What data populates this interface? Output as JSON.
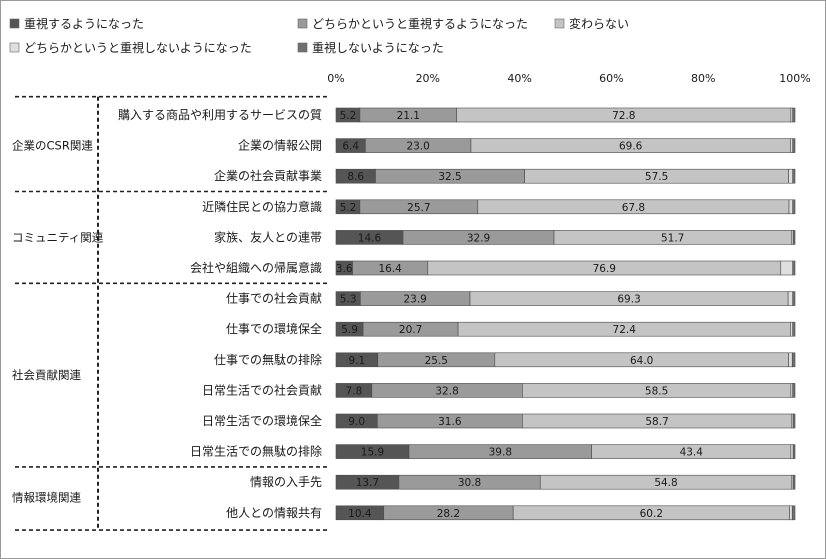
{
  "chart_data": {
    "type": "bar",
    "orientation": "horizontal",
    "stacked": true,
    "title": "",
    "xlim": [
      0,
      100
    ],
    "x_ticks": [
      "0%",
      "20%",
      "40%",
      "60%",
      "80%",
      "100%"
    ],
    "legend": {
      "placement": "top",
      "entries": [
        {
          "name": "重視するようになった",
          "color": "#555555"
        },
        {
          "name": "どちらかというと重視するようになった",
          "color": "#9a9a9a"
        },
        {
          "name": "変わらない",
          "color": "#c4c4c4"
        },
        {
          "name": "どちらかというと重視しないようになった",
          "color": "#dedede"
        },
        {
          "name": "重視しないようになった",
          "color": "#707070"
        }
      ]
    },
    "groups": [
      {
        "name": "企業のCSR関連",
        "rows": [
          0,
          2
        ]
      },
      {
        "name": "コミュニティ関連",
        "rows": [
          3,
          5
        ]
      },
      {
        "name": "社会貢献関連",
        "rows": [
          6,
          11
        ]
      },
      {
        "name": "情報環境関連",
        "rows": [
          12,
          13
        ]
      }
    ],
    "categories": [
      "購入する商品や利用するサービスの質",
      "企業の情報公開",
      "企業の社会貢献事業",
      "近隣住民との協力意識",
      "家族、友人との連帯",
      "会社や組織への帰属意識",
      "仕事での社会貢献",
      "仕事での環境保全",
      "仕事での無駄の排除",
      "日常生活での社会貢献",
      "日常生活での環境保全",
      "日常生活での無駄の排除",
      "情報の入手先",
      "他人との情報共有"
    ],
    "series": [
      {
        "name": "重視するようになった",
        "color": "#555555",
        "values": [
          5.2,
          6.4,
          8.6,
          5.2,
          14.6,
          3.6,
          5.3,
          5.9,
          9.1,
          7.8,
          9.0,
          15.9,
          13.7,
          10.4
        ]
      },
      {
        "name": "どちらかというと重視するようになった",
        "color": "#9a9a9a",
        "values": [
          21.1,
          23.0,
          32.5,
          25.7,
          32.9,
          16.4,
          23.9,
          20.7,
          25.5,
          32.8,
          31.6,
          39.8,
          30.8,
          28.2
        ]
      },
      {
        "name": "変わらない",
        "color": "#c4c4c4",
        "values": [
          72.8,
          69.6,
          57.5,
          67.8,
          51.7,
          76.9,
          69.3,
          72.4,
          64.0,
          58.5,
          58.7,
          43.4,
          54.8,
          60.2
        ]
      },
      {
        "name": "どちらかというと重視しないようになった",
        "color": "#dedede",
        "values": [
          0.4,
          0.5,
          0.9,
          0.8,
          0.4,
          2.6,
          1.0,
          0.5,
          0.8,
          0.4,
          0.3,
          0.5,
          0.3,
          0.6
        ]
      },
      {
        "name": "重視しないようになった",
        "color": "#707070",
        "values": [
          0.5,
          0.5,
          0.5,
          0.5,
          0.4,
          0.5,
          0.5,
          0.5,
          0.6,
          0.5,
          0.4,
          0.4,
          0.4,
          0.6
        ]
      }
    ],
    "labeled_series": [
      0,
      1,
      2
    ],
    "grid": false
  }
}
